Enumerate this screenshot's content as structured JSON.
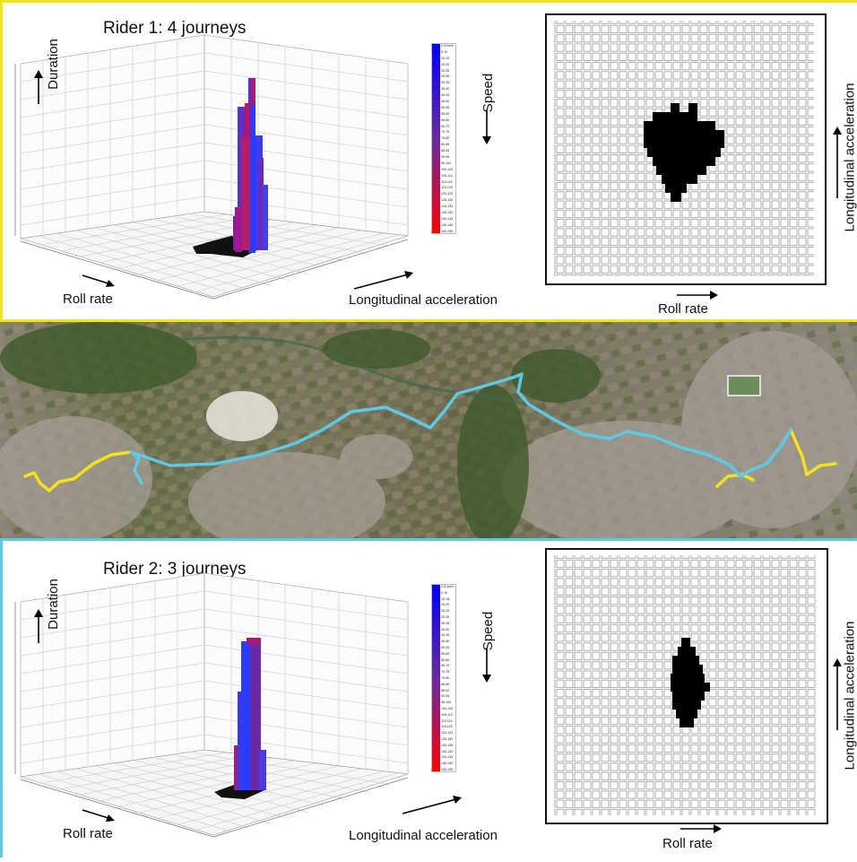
{
  "rider1": {
    "title": "Rider 1: 4 journeys",
    "duration_label": "Duration",
    "speed_label": "Speed",
    "roll_label": "Roll rate",
    "accel_label": "Longitudinal acceleration",
    "grid_xlabel": "Roll rate",
    "grid_ylabel": "Longitudinal acceleration"
  },
  "rider2": {
    "title": "Rider 2: 3 journeys",
    "duration_label": "Duration",
    "speed_label": "Speed",
    "roll_label": "Roll rate",
    "accel_label": "Longitudinal acceleration",
    "grid_xlabel": "Roll rate",
    "grid_ylabel": "Longitudinal acceleration"
  },
  "speed_legend": [
    "0-5 km/h",
    "5-10",
    "10-15",
    "15-20",
    "20-25",
    "25-30",
    "30-35",
    "35-40",
    "40-45",
    "45-50",
    "50-55",
    "55-60",
    "60-65",
    "65-70",
    "70-75",
    "75-80",
    "80-85",
    "85-90",
    "90-95",
    "95-100",
    "100-105",
    "105-110",
    "110-115",
    "115-120",
    "120-125",
    "125-130",
    "130-135",
    "135-140",
    "140-145",
    "145-150",
    "150-155"
  ],
  "colors": {
    "rider1_route": "#f4e21a",
    "rider2_route": "#5ec8e6",
    "speed_low": "#0000ff",
    "speed_high": "#ff0000"
  }
}
